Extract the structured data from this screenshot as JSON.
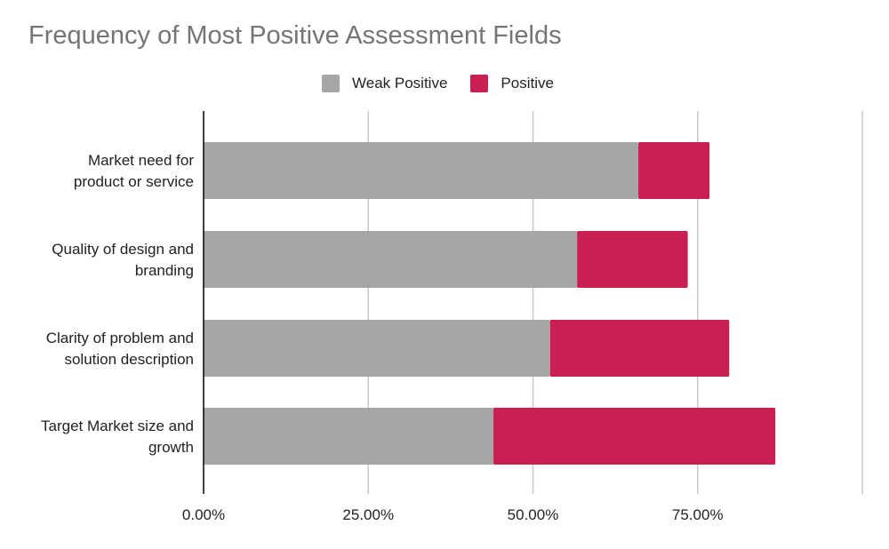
{
  "chart_data": {
    "type": "bar",
    "orientation": "horizontal",
    "stacked": true,
    "title": "Frequency of Most Positive Assessment Fields",
    "categories": [
      [
        "Market need for",
        "product or service"
      ],
      [
        "Quality of design and",
        "branding"
      ],
      [
        "Clarity of problem and",
        "solution description"
      ],
      [
        "Target Market size and",
        "growth"
      ]
    ],
    "series": [
      {
        "name": "Weak Positive",
        "color": "#a6a6a6",
        "values": [
          66.0,
          56.7,
          52.6,
          44.0
        ]
      },
      {
        "name": "Positive",
        "color": "#c91f52",
        "values": [
          10.8,
          16.8,
          27.2,
          42.8
        ]
      }
    ],
    "xlim": [
      0,
      100
    ],
    "xticks": [
      0,
      25,
      50,
      75,
      100
    ],
    "xtick_labels": [
      "0.00%",
      "25.00%",
      "50.00%",
      "75.00%",
      ""
    ],
    "legend_position": "top-center",
    "grid": true
  }
}
